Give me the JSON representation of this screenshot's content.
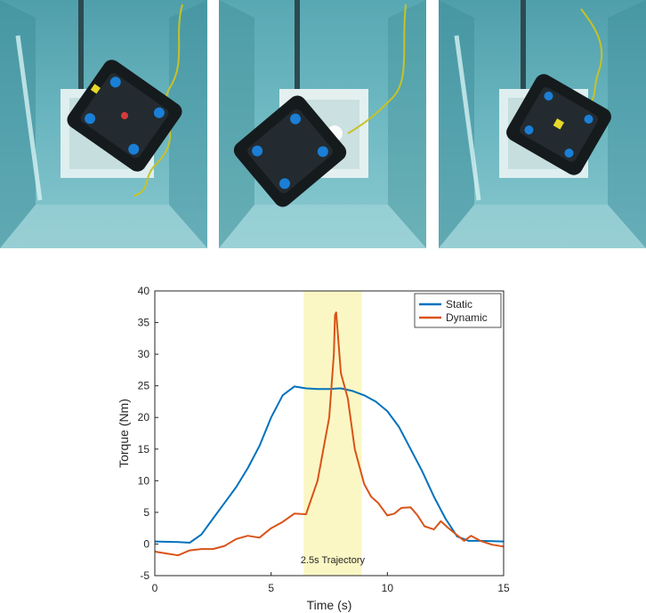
{
  "photos": [
    {
      "name": "photo-robot-1",
      "robot_rotation": 35
    },
    {
      "name": "photo-robot-2",
      "robot_rotation": -40
    },
    {
      "name": "photo-robot-3",
      "robot_rotation": 30
    }
  ],
  "chart_data": {
    "type": "line",
    "title": "",
    "xlabel": "Time (s)",
    "ylabel": "Torque (Nm)",
    "xlim": [
      0,
      15
    ],
    "ylim": [
      -5,
      40
    ],
    "xticks": [
      0,
      5,
      10,
      15
    ],
    "yticks": [
      -5,
      0,
      5,
      10,
      15,
      20,
      25,
      30,
      35,
      40
    ],
    "grid": false,
    "legend_position": "top-right",
    "highlight": {
      "x_start": 6.4,
      "x_end": 8.9,
      "label": "2.5s Trajectory",
      "color": "#fbf7c4"
    },
    "series": [
      {
        "name": "Static",
        "color": "#0072BD",
        "x": [
          0,
          1,
          1.5,
          2,
          2.5,
          3,
          3.5,
          4,
          4.5,
          5,
          5.5,
          6,
          6.5,
          7,
          7.5,
          8,
          8.5,
          9,
          9.5,
          10,
          10.5,
          11,
          11.5,
          12,
          12.5,
          13,
          13.5,
          14,
          15
        ],
        "y": [
          0.4,
          0.3,
          0.2,
          1.5,
          4,
          6.5,
          9,
          12,
          15.5,
          20,
          23.5,
          24.9,
          24.6,
          24.5,
          24.5,
          24.6,
          24.2,
          23.5,
          22.5,
          21,
          18.5,
          15,
          11.5,
          7.5,
          4,
          1.2,
          0.5,
          0.5,
          0.4
        ]
      },
      {
        "name": "Dynamic",
        "color": "#D95319",
        "x": [
          0,
          0.5,
          1,
          1.5,
          2,
          2.5,
          3,
          3.5,
          4,
          4.5,
          5,
          5.5,
          6,
          6.5,
          7,
          7.5,
          7.7,
          7.75,
          7.8,
          8,
          8.3,
          8.6,
          9,
          9.3,
          9.6,
          10,
          10.3,
          10.6,
          11,
          11.3,
          11.6,
          12,
          12.3,
          12.6,
          13,
          13.3,
          13.6,
          14,
          14.5,
          15
        ],
        "y": [
          -1.2,
          -1.5,
          -1.8,
          -1.0,
          -0.8,
          -0.8,
          -0.3,
          0.8,
          1.3,
          1.0,
          2.5,
          3.5,
          4.8,
          4.7,
          10,
          20,
          30,
          36.2,
          36.6,
          27,
          23,
          15,
          9.5,
          7.5,
          6.5,
          4.5,
          4.8,
          5.7,
          5.8,
          4.5,
          2.8,
          2.3,
          3.6,
          2.6,
          1.4,
          0.5,
          1.3,
          0.5,
          -0.1,
          -0.4
        ]
      }
    ]
  }
}
